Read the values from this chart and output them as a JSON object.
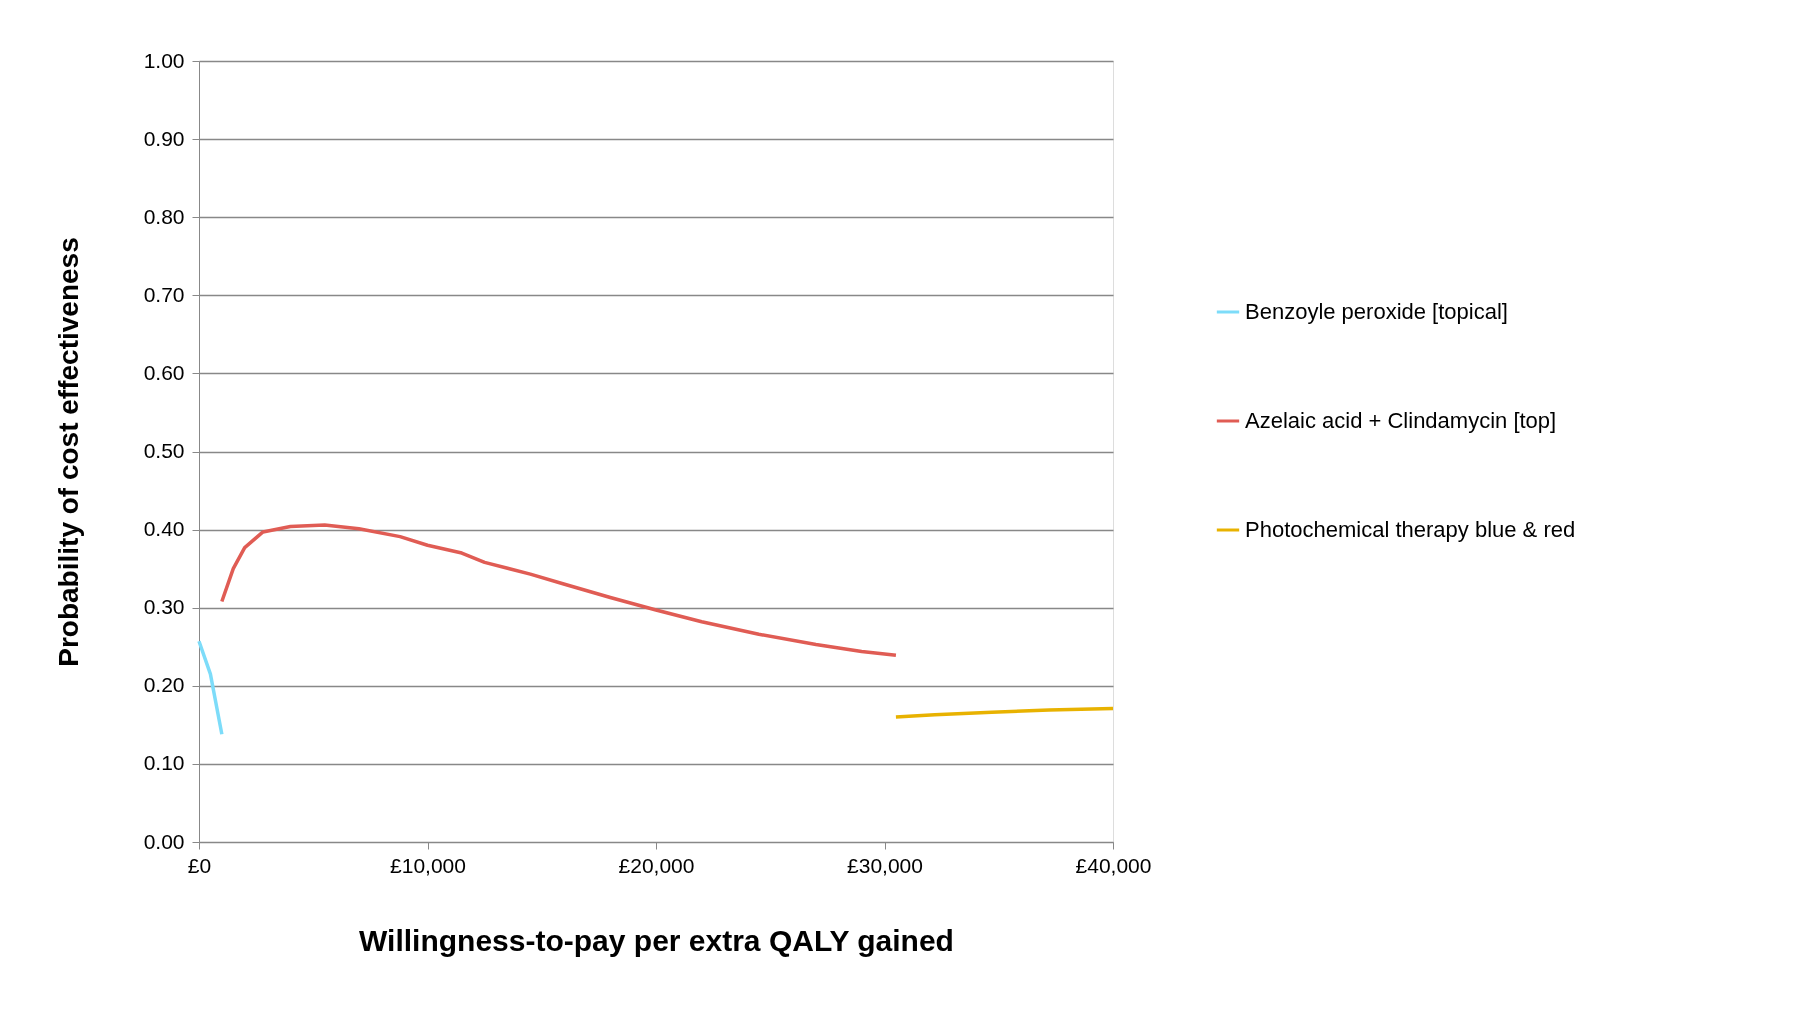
{
  "chart_data": {
    "type": "line",
    "xlabel": "Willingness-to-pay per extra QALY gained",
    "ylabel": "Probability of cost effectiveness",
    "xlim": [
      0,
      40000
    ],
    "xticks": [
      {
        "value": 0,
        "label": "£0"
      },
      {
        "value": 10000,
        "label": "£10,000"
      },
      {
        "value": 20000,
        "label": "£20,000"
      },
      {
        "value": 30000,
        "label": "£30,000"
      },
      {
        "value": 40000,
        "label": "£40,000"
      }
    ],
    "ylim": [
      0,
      1
    ],
    "yticks": [
      {
        "value": 0,
        "label": "0.00"
      },
      {
        "value": 0.1,
        "label": "0.10"
      },
      {
        "value": 0.2,
        "label": "0.20"
      },
      {
        "value": 0.3,
        "label": "0.30"
      },
      {
        "value": 0.4,
        "label": "0.40"
      },
      {
        "value": 0.5,
        "label": "0.50"
      },
      {
        "value": 0.6,
        "label": "0.60"
      },
      {
        "value": 0.7,
        "label": "0.70"
      },
      {
        "value": 0.8,
        "label": "0.80"
      },
      {
        "value": 0.9,
        "label": "0.90"
      },
      {
        "value": 1,
        "label": "1.00"
      }
    ],
    "grid": "y",
    "legend": "right",
    "marker": "none",
    "line_style": "solid",
    "series": [
      {
        "name": "Benzoyle peroxide [topical]",
        "color": "#7ddcf9",
        "x": [
          0,
          500,
          1000
        ],
        "values": [
          0.257,
          0.215,
          0.138
        ]
      },
      {
        "name": "Azelaic acid + Clindamycin [top]",
        "color": "#e05c54",
        "x": [
          1000,
          1500,
          2000,
          2800,
          4000,
          5500,
          7000,
          8800,
          10000,
          11500,
          12500,
          14500,
          16000,
          18000,
          20000,
          22000,
          24500,
          27000,
          29000,
          30500
        ],
        "values": [
          0.308,
          0.35,
          0.377,
          0.397,
          0.404,
          0.406,
          0.401,
          0.391,
          0.38,
          0.37,
          0.358,
          0.343,
          0.33,
          0.313,
          0.297,
          0.282,
          0.266,
          0.253,
          0.244,
          0.239
        ]
      },
      {
        "name": "Photochemical therapy blue & red",
        "color": "#e8b200",
        "x": [
          30500,
          32200,
          34700,
          37200,
          40000
        ],
        "values": [
          0.16,
          0.163,
          0.166,
          0.169,
          0.171
        ]
      }
    ]
  }
}
